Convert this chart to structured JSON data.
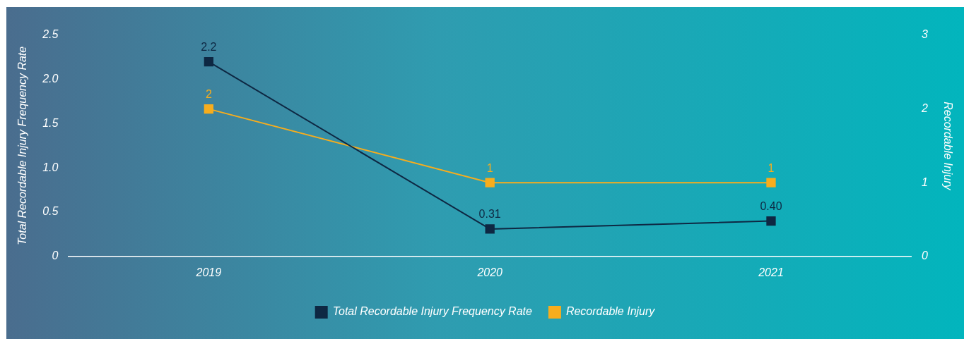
{
  "chart_data": {
    "type": "line",
    "xlabel": null,
    "ylabel": "Total Recordable Injury Frequency Rate",
    "y2label": "Recordable Injury",
    "categories": [
      "2019",
      "2020",
      "2021"
    ],
    "series": [
      {
        "name": "Total Recordable Injury Frequency Rate",
        "color": "#0e2843",
        "values": [
          2.2,
          0.31,
          0.4
        ],
        "value_labels": [
          "2.2",
          "0.31",
          "0.40"
        ]
      },
      {
        "name": "Recordable Injury",
        "color": "#f7ad1d",
        "values": [
          2,
          1,
          1
        ],
        "axis": "y2",
        "value_labels": [
          "2",
          "1",
          "1"
        ]
      }
    ],
    "ylim": [
      0,
      2.5
    ],
    "yticks": [
      0,
      0.5,
      {
        "value": 1,
        "label": "1.0"
      },
      1.5,
      {
        "value": 2,
        "label": "2.0"
      },
      2.5
    ],
    "y2lim": [
      0,
      3
    ],
    "y2ticks": [
      0,
      1,
      2,
      3
    ],
    "grid": false,
    "legend": "bottom",
    "marker": "square",
    "line_style": "solid"
  }
}
